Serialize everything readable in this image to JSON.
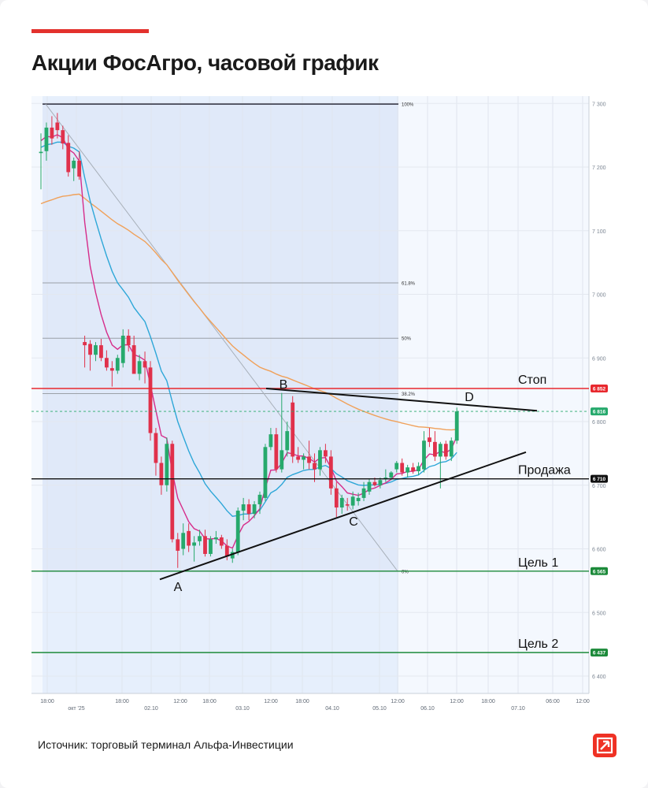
{
  "header": {
    "title": "Акции ФосАгро, часовой график"
  },
  "footer": {
    "source": "Источник: торговый терминал Альфа-Инвестиции"
  },
  "colors": {
    "accent": "#e3312d",
    "logo": "#ef3124",
    "bull": "#26a96c",
    "bear": "#e0314b",
    "ema_fast": "#d62c8a",
    "ema_mid": "#2ea7d8",
    "ema_slow": "#f0a15a",
    "stop": "#e8282e",
    "target": "#1c8a3a"
  },
  "chart_data": {
    "type": "candlestick",
    "title": "Акции ФосАгро, часовой график",
    "ylim": [
      6380,
      7310
    ],
    "y_ticks": [
      "7 300",
      "7 200",
      "7 100",
      "7 000",
      "6 900",
      "6 800",
      "6 700",
      "6 600",
      "6 500",
      "6 400"
    ],
    "x_ticks": [
      "18:00",
      "окт '25",
      "18:00",
      "02.10",
      "12:00",
      "18:00",
      "03.10",
      "12:00",
      "18:00",
      "04.10",
      "05.10",
      "12:00",
      "06.10",
      "12:00",
      "18:00",
      "07.10",
      "06:00",
      "12:00"
    ],
    "levels": [
      {
        "label": "Стоп",
        "value": 6852,
        "price_label": "6 852",
        "color": "#e8282e"
      },
      {
        "label": "",
        "value": 6816,
        "price_label": "6 816",
        "color": "#26a96c"
      },
      {
        "label": "Продажа",
        "value": 6710,
        "price_label": "6 710",
        "color": "#111111"
      },
      {
        "label": "Цель 1",
        "value": 6565,
        "price_label": "6 565",
        "color": "#1c8a3a"
      },
      {
        "label": "Цель 2",
        "value": 6437,
        "price_label": "6 437",
        "color": "#1c8a3a"
      }
    ],
    "fibonacci": [
      {
        "label": "100%",
        "value": 7299
      },
      {
        "label": "61.8%",
        "value": 7018
      },
      {
        "label": "50%",
        "value": 6931
      },
      {
        "label": "38.2%",
        "value": 6844
      },
      {
        "label": "0%",
        "value": 6565
      }
    ],
    "pattern_points": [
      {
        "label": "A"
      },
      {
        "label": "B"
      },
      {
        "label": "C"
      },
      {
        "label": "D"
      }
    ],
    "candles": [
      {
        "o": 7222,
        "h": 7253,
        "l": 7165,
        "c": 7224
      },
      {
        "o": 7225,
        "h": 7270,
        "l": 7210,
        "c": 7262
      },
      {
        "o": 7262,
        "h": 7280,
        "l": 7235,
        "c": 7245
      },
      {
        "o": 7270,
        "h": 7285,
        "l": 7245,
        "c": 7258
      },
      {
        "o": 7258,
        "h": 7265,
        "l": 7228,
        "c": 7237
      },
      {
        "o": 7238,
        "h": 7250,
        "l": 7185,
        "c": 7192
      },
      {
        "o": 7198,
        "h": 7215,
        "l": 7178,
        "c": 7210
      },
      {
        "o": 7210,
        "h": 7225,
        "l": 7180,
        "c": 7185
      },
      {
        "o": 6925,
        "h": 6935,
        "l": 6885,
        "c": 6920
      },
      {
        "o": 6922,
        "h": 6928,
        "l": 6880,
        "c": 6905
      },
      {
        "o": 6905,
        "h": 6925,
        "l": 6895,
        "c": 6920
      },
      {
        "o": 6920,
        "h": 6930,
        "l": 6895,
        "c": 6900
      },
      {
        "o": 6900,
        "h": 6912,
        "l": 6880,
        "c": 6885
      },
      {
        "o": 6884,
        "h": 6895,
        "l": 6855,
        "c": 6880
      },
      {
        "o": 6880,
        "h": 6905,
        "l": 6875,
        "c": 6900
      },
      {
        "o": 6892,
        "h": 6945,
        "l": 6885,
        "c": 6935
      },
      {
        "o": 6935,
        "h": 6945,
        "l": 6910,
        "c": 6920
      },
      {
        "o": 6920,
        "h": 6935,
        "l": 6880,
        "c": 6875
      },
      {
        "o": 6875,
        "h": 6905,
        "l": 6865,
        "c": 6895
      },
      {
        "o": 6895,
        "h": 6910,
        "l": 6860,
        "c": 6885
      },
      {
        "o": 6885,
        "h": 6895,
        "l": 6770,
        "c": 6782
      },
      {
        "o": 6782,
        "h": 6790,
        "l": 6715,
        "c": 6735
      },
      {
        "o": 6735,
        "h": 6745,
        "l": 6685,
        "c": 6700
      },
      {
        "o": 6700,
        "h": 6775,
        "l": 6690,
        "c": 6765
      },
      {
        "o": 6765,
        "h": 6770,
        "l": 6610,
        "c": 6615
      },
      {
        "o": 6615,
        "h": 6625,
        "l": 6570,
        "c": 6597
      },
      {
        "o": 6600,
        "h": 6640,
        "l": 6590,
        "c": 6625
      },
      {
        "o": 6628,
        "h": 6640,
        "l": 6595,
        "c": 6605
      },
      {
        "o": 6605,
        "h": 6620,
        "l": 6580,
        "c": 6610
      },
      {
        "o": 6612,
        "h": 6630,
        "l": 6605,
        "c": 6620
      },
      {
        "o": 6620,
        "h": 6630,
        "l": 6588,
        "c": 6592
      },
      {
        "o": 6592,
        "h": 6620,
        "l": 6588,
        "c": 6615
      },
      {
        "o": 6615,
        "h": 6628,
        "l": 6608,
        "c": 6618
      },
      {
        "o": 6618,
        "h": 6622,
        "l": 6600,
        "c": 6605
      },
      {
        "o": 6605,
        "h": 6615,
        "l": 6582,
        "c": 6588
      },
      {
        "o": 6585,
        "h": 6600,
        "l": 6578,
        "c": 6595
      },
      {
        "o": 6595,
        "h": 6665,
        "l": 6590,
        "c": 6660
      },
      {
        "o": 6660,
        "h": 6680,
        "l": 6645,
        "c": 6670
      },
      {
        "o": 6670,
        "h": 6678,
        "l": 6645,
        "c": 6655
      },
      {
        "o": 6655,
        "h": 6675,
        "l": 6648,
        "c": 6670
      },
      {
        "o": 6670,
        "h": 6690,
        "l": 6655,
        "c": 6685
      },
      {
        "o": 6680,
        "h": 6765,
        "l": 6675,
        "c": 6760
      },
      {
        "o": 6760,
        "h": 6790,
        "l": 6755,
        "c": 6780
      },
      {
        "o": 6780,
        "h": 6790,
        "l": 6720,
        "c": 6725
      },
      {
        "o": 6725,
        "h": 6845,
        "l": 6720,
        "c": 6755
      },
      {
        "o": 6755,
        "h": 6800,
        "l": 6745,
        "c": 6785
      },
      {
        "o": 6830,
        "h": 6840,
        "l": 6735,
        "c": 6745
      },
      {
        "o": 6745,
        "h": 6760,
        "l": 6735,
        "c": 6740
      },
      {
        "o": 6740,
        "h": 6750,
        "l": 6725,
        "c": 6745
      },
      {
        "o": 6745,
        "h": 6770,
        "l": 6725,
        "c": 6735
      },
      {
        "o": 6735,
        "h": 6750,
        "l": 6705,
        "c": 6725
      },
      {
        "o": 6725,
        "h": 6760,
        "l": 6715,
        "c": 6755
      },
      {
        "o": 6755,
        "h": 6765,
        "l": 6735,
        "c": 6745
      },
      {
        "o": 6745,
        "h": 6755,
        "l": 6685,
        "c": 6695
      },
      {
        "o": 6695,
        "h": 6705,
        "l": 6650,
        "c": 6665
      },
      {
        "o": 6665,
        "h": 6685,
        "l": 6655,
        "c": 6680
      },
      {
        "o": 6670,
        "h": 6680,
        "l": 6660,
        "c": 6668
      },
      {
        "o": 6668,
        "h": 6690,
        "l": 6662,
        "c": 6682
      },
      {
        "o": 6675,
        "h": 6688,
        "l": 6668,
        "c": 6680
      },
      {
        "o": 6680,
        "h": 6705,
        "l": 6675,
        "c": 6695
      },
      {
        "o": 6690,
        "h": 6710,
        "l": 6685,
        "c": 6705
      },
      {
        "o": 6705,
        "h": 6712,
        "l": 6698,
        "c": 6700
      },
      {
        "o": 6700,
        "h": 6712,
        "l": 6695,
        "c": 6708
      },
      {
        "o": 6710,
        "h": 6725,
        "l": 6705,
        "c": 6712
      },
      {
        "o": 6712,
        "h": 6722,
        "l": 6708,
        "c": 6720
      },
      {
        "o": 6725,
        "h": 6738,
        "l": 6720,
        "c": 6735
      },
      {
        "o": 6735,
        "h": 6742,
        "l": 6715,
        "c": 6720
      },
      {
        "o": 6720,
        "h": 6732,
        "l": 6712,
        "c": 6728
      },
      {
        "o": 6728,
        "h": 6735,
        "l": 6718,
        "c": 6722
      },
      {
        "o": 6722,
        "h": 6736,
        "l": 6716,
        "c": 6730
      },
      {
        "o": 6725,
        "h": 6785,
        "l": 6720,
        "c": 6770
      },
      {
        "o": 6775,
        "h": 6790,
        "l": 6760,
        "c": 6768
      },
      {
        "o": 6768,
        "h": 6785,
        "l": 6738,
        "c": 6745
      },
      {
        "o": 6745,
        "h": 6768,
        "l": 6695,
        "c": 6765
      },
      {
        "o": 6765,
        "h": 6770,
        "l": 6740,
        "c": 6745
      },
      {
        "o": 6745,
        "h": 6775,
        "l": 6738,
        "c": 6770
      },
      {
        "o": 6770,
        "h": 6822,
        "l": 6765,
        "c": 6816
      }
    ]
  }
}
